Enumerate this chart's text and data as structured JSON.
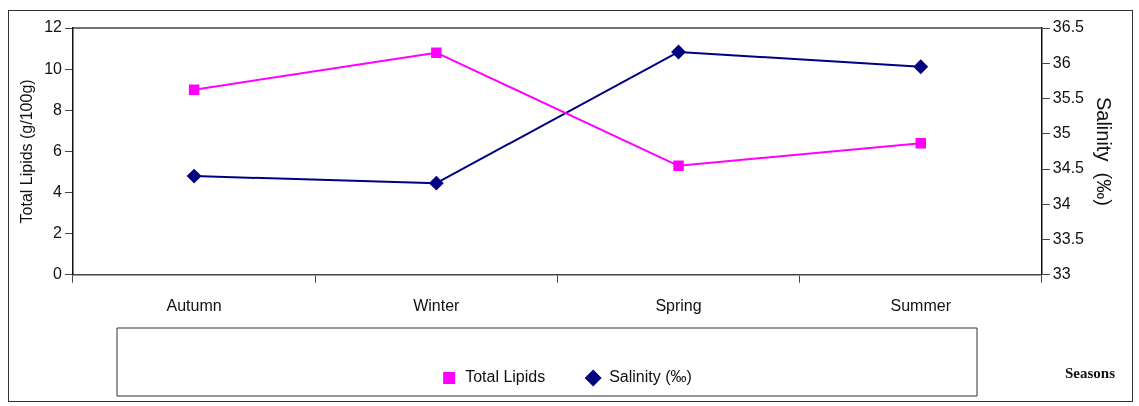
{
  "chart_data": {
    "type": "line",
    "xlabel": "Seasons",
    "ylabel": "Total Lipids (g/100g)",
    "y2label": "Salinity  (‰)",
    "categories": [
      "Autumn",
      "Winter",
      "Spring",
      "Summer"
    ],
    "series": [
      {
        "name": "Total Lipids",
        "color": "#ff00ff",
        "marker": "square",
        "values": [
          9.0,
          10.8,
          5.3,
          6.4
        ]
      },
      {
        "name": "Salinity (‰)",
        "color": "#000080",
        "marker": "diamond",
        "axis": "y2",
        "values": [
          34.4,
          34.3,
          36.16,
          35.95
        ]
      }
    ],
    "ylim": [
      0,
      12
    ],
    "yticks": [
      0,
      2,
      4,
      6,
      8,
      10,
      12
    ],
    "y2lim": [
      33,
      36.5
    ],
    "y2ticks": [
      33,
      33.5,
      34,
      34.5,
      35,
      35.5,
      36,
      36.5
    ],
    "grid": false,
    "legend": "bottom"
  }
}
